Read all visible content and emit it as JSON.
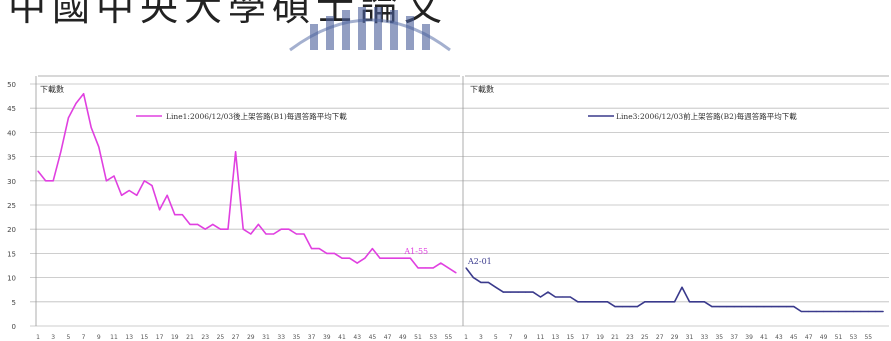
{
  "header_text": "中國中央大學碩士論文",
  "chart_data": [
    {
      "type": "line",
      "ylabel": "下載數",
      "ylim": [
        0,
        50
      ],
      "yticks": [
        0,
        5,
        10,
        15,
        20,
        25,
        30,
        35,
        40,
        45,
        50
      ],
      "x": [
        1,
        2,
        3,
        4,
        5,
        6,
        7,
        8,
        9,
        10,
        11,
        12,
        13,
        14,
        15,
        16,
        17,
        18,
        19,
        20,
        21,
        22,
        23,
        24,
        25,
        26,
        27,
        28,
        29,
        30,
        31,
        32,
        33,
        34,
        35,
        36,
        37,
        38,
        39,
        40,
        41,
        42,
        43,
        44,
        45,
        46,
        47,
        48,
        49,
        50,
        51,
        52,
        53,
        54,
        55,
        56
      ],
      "xticks": [
        1,
        3,
        5,
        7,
        9,
        11,
        13,
        15,
        17,
        19,
        21,
        23,
        25,
        27,
        29,
        31,
        33,
        35,
        37,
        39,
        41,
        43,
        45,
        47,
        49,
        51,
        53,
        55
      ],
      "series": [
        {
          "name": "Line1:2006/12/03後上架答路(B1)每週答路平均下載",
          "color": "#e040e0",
          "values": [
            32,
            30,
            30,
            36,
            43,
            46,
            48,
            41,
            37,
            30,
            31,
            27,
            28,
            27,
            30,
            29,
            24,
            27,
            23,
            23,
            21,
            21,
            20,
            21,
            20,
            20,
            36,
            20,
            19,
            21,
            19,
            19,
            20,
            20,
            19,
            19,
            16,
            16,
            15,
            15,
            14,
            14,
            13,
            14,
            16,
            14,
            14,
            14,
            14,
            14,
            12,
            12,
            12,
            13,
            12,
            11
          ]
        }
      ],
      "annotations": [
        {
          "text": "A1-55",
          "x": 55,
          "y": 14
        }
      ]
    },
    {
      "type": "line",
      "ylabel": "下載數",
      "ylim": [
        0,
        50
      ],
      "x": [
        1,
        2,
        3,
        4,
        5,
        6,
        7,
        8,
        9,
        10,
        11,
        12,
        13,
        14,
        15,
        16,
        17,
        18,
        19,
        20,
        21,
        22,
        23,
        24,
        25,
        26,
        27,
        28,
        29,
        30,
        31,
        32,
        33,
        34,
        35,
        36,
        37,
        38,
        39,
        40,
        41,
        42,
        43,
        44,
        45,
        46,
        47,
        48,
        49,
        50,
        51,
        52,
        53,
        54,
        55,
        56,
        57
      ],
      "xticks": [
        1,
        3,
        5,
        7,
        9,
        11,
        13,
        15,
        17,
        19,
        21,
        23,
        25,
        27,
        29,
        31,
        33,
        35,
        37,
        39,
        41,
        43,
        45,
        47,
        49,
        51,
        53,
        55
      ],
      "series": [
        {
          "name": "Line3:2006/12/03前上架答路(B2)每週答路平均下載",
          "color": "#3a3a8c",
          "values": [
            12,
            10,
            9,
            9,
            8,
            7,
            7,
            7,
            7,
            7,
            6,
            7,
            6,
            6,
            6,
            5,
            5,
            5,
            5,
            5,
            4,
            4,
            4,
            4,
            5,
            5,
            5,
            5,
            5,
            8,
            5,
            5,
            5,
            4,
            4,
            4,
            4,
            4,
            4,
            4,
            4,
            4,
            4,
            4,
            4,
            3,
            3,
            3,
            3,
            3,
            3,
            3,
            3,
            3,
            3,
            3,
            3
          ]
        }
      ],
      "annotations": [
        {
          "text": "A2-01",
          "x": 1,
          "y": 12
        }
      ]
    }
  ]
}
